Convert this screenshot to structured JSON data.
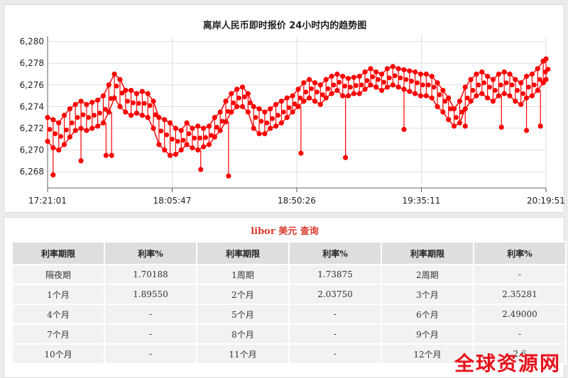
{
  "chart_data": {
    "type": "scatter",
    "title": "离岸人民币即时报价 24小时内的趋势图",
    "x_ticks": [
      "17:21:01",
      "18:05:47",
      "18:50:26",
      "19:35:11",
      "20:19:51"
    ],
    "y_ticks": [
      "6,268",
      "6,270",
      "6,272",
      "6,274",
      "6,276",
      "6,278",
      "6,280"
    ],
    "ylim": [
      6.2665,
      6.2805
    ],
    "grid": true,
    "series_color": "#ff0000",
    "x_minutes": [
      0,
      2,
      4,
      6,
      8,
      10,
      12,
      14,
      16,
      18,
      20,
      22,
      24,
      26,
      28,
      30,
      32,
      34,
      36,
      38,
      40,
      42,
      44,
      46,
      48,
      50,
      52,
      54,
      56,
      58,
      60,
      62,
      64,
      66,
      68,
      70,
      72,
      74,
      76,
      78,
      80,
      82,
      84,
      86,
      88,
      90,
      92,
      94,
      96,
      98,
      100,
      102,
      104,
      106,
      108,
      110,
      112,
      114,
      116,
      118,
      120,
      122,
      124,
      126,
      128,
      130,
      132,
      134,
      136,
      138,
      140,
      142,
      144,
      146,
      148,
      150,
      152,
      154,
      156,
      158,
      160,
      162,
      164,
      166,
      168,
      170,
      172,
      174,
      176,
      178,
      179
    ],
    "upper": [
      6.273,
      6.2728,
      6.2725,
      6.2732,
      6.2738,
      6.2742,
      6.2745,
      6.2742,
      6.2744,
      6.2746,
      6.275,
      6.276,
      6.277,
      6.2765,
      6.2755,
      6.2755,
      6.2752,
      6.2754,
      6.2752,
      6.2745,
      6.273,
      6.2728,
      6.2725,
      6.272,
      6.2718,
      6.2725,
      6.272,
      6.2722,
      6.272,
      6.2722,
      6.273,
      6.2735,
      6.2745,
      6.2752,
      6.2756,
      6.2758,
      6.2752,
      6.274,
      6.2738,
      6.2735,
      6.2738,
      6.2742,
      6.2745,
      6.2748,
      6.275,
      6.2756,
      6.2762,
      6.2765,
      6.2762,
      6.276,
      6.2765,
      6.2768,
      6.277,
      6.2768,
      6.2766,
      6.2767,
      6.2768,
      6.2772,
      6.2775,
      6.2772,
      6.277,
      6.2775,
      6.2777,
      6.2775,
      6.2774,
      6.2773,
      6.2772,
      6.277,
      6.277,
      6.2768,
      6.2762,
      6.2755,
      6.2748,
      6.2738,
      6.2745,
      6.2758,
      6.2765,
      6.277,
      6.2772,
      6.2768,
      6.2765,
      6.277,
      6.2772,
      6.277,
      6.2765,
      6.2762,
      6.2768,
      6.277,
      6.2775,
      6.2782,
      6.2784
    ],
    "lower": [
      6.2708,
      6.2702,
      6.27,
      6.2705,
      6.2712,
      6.2718,
      6.272,
      6.2718,
      6.272,
      6.2722,
      6.2725,
      6.2735,
      6.2748,
      6.274,
      6.2735,
      6.2732,
      6.2734,
      6.2732,
      6.273,
      6.272,
      6.2705,
      6.27,
      6.2695,
      6.2696,
      6.27,
      6.2705,
      6.2702,
      6.27,
      6.2703,
      6.2705,
      6.2712,
      6.2718,
      6.2726,
      6.2735,
      6.274,
      6.274,
      6.2735,
      6.272,
      6.2715,
      6.2715,
      6.272,
      6.2722,
      6.2725,
      6.273,
      6.2735,
      6.274,
      6.2745,
      6.2748,
      6.2745,
      6.2742,
      6.2748,
      6.2752,
      6.2755,
      6.275,
      6.275,
      6.2752,
      6.2752,
      6.2756,
      6.276,
      6.2758,
      6.2755,
      6.2758,
      6.276,
      6.2758,
      6.2756,
      6.2754,
      6.2752,
      6.275,
      6.275,
      6.2748,
      6.274,
      6.2735,
      6.2728,
      6.2722,
      6.2725,
      6.2738,
      6.2745,
      6.275,
      6.2752,
      6.2748,
      6.2745,
      6.275,
      6.2752,
      6.275,
      6.2745,
      6.2742,
      6.2748,
      6.275,
      6.2755,
      6.2762,
      6.2765
    ],
    "outliers": [
      [
        2,
        6.2677
      ],
      [
        12,
        6.269
      ],
      [
        21,
        6.2695
      ],
      [
        23,
        6.2695
      ],
      [
        55,
        6.2682
      ],
      [
        65,
        6.2676
      ],
      [
        91,
        6.2697
      ],
      [
        107,
        6.2693
      ],
      [
        128,
        6.2719
      ],
      [
        150,
        6.2722
      ],
      [
        163,
        6.2721
      ],
      [
        172,
        6.2718
      ],
      [
        177,
        6.2722
      ]
    ]
  },
  "table": {
    "title": "libor 美元 查询",
    "headers": [
      "利率期限",
      "利率%",
      "利率期限",
      "利率%",
      "利率期限",
      "利率%"
    ],
    "rows": [
      [
        "隔夜期",
        "1.70188",
        "1周期",
        "1.73875",
        "2周期",
        "-"
      ],
      [
        "1个月",
        "1.89550",
        "2个月",
        "2.03750",
        "3个月",
        "2.35281"
      ],
      [
        "4个月",
        "-",
        "5个月",
        "-",
        "6个月",
        "2.49000"
      ],
      [
        "7个月",
        "-",
        "8个月",
        "-",
        "9个月",
        "-"
      ],
      [
        "10个月",
        "-",
        "11个月",
        "-",
        "12个月",
        "2.6"
      ]
    ]
  },
  "watermark": "全球资源网"
}
